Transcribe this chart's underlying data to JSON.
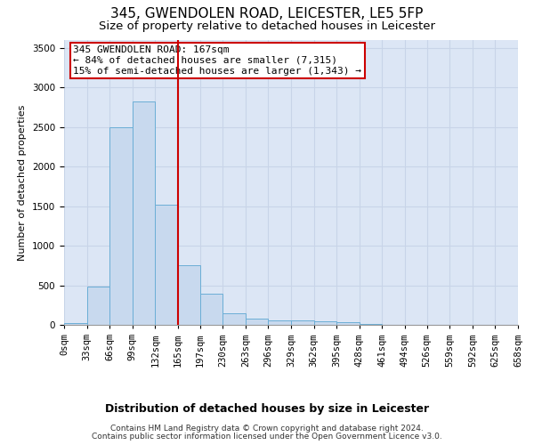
{
  "title1": "345, GWENDOLEN ROAD, LEICESTER, LE5 5FP",
  "title2": "Size of property relative to detached houses in Leicester",
  "xlabel": "Distribution of detached houses by size in Leicester",
  "ylabel": "Number of detached properties",
  "bin_edges": [
    0,
    33,
    66,
    99,
    132,
    165,
    197,
    230,
    263,
    296,
    329,
    362,
    395,
    428,
    461,
    494,
    526,
    559,
    592,
    625,
    658
  ],
  "bin_counts": [
    20,
    480,
    2500,
    2820,
    1520,
    750,
    390,
    150,
    80,
    60,
    55,
    50,
    30,
    15,
    0,
    0,
    0,
    0,
    0,
    0
  ],
  "bar_color": "#c8d9ee",
  "bar_edge_color": "#6baed6",
  "vline_x": 165,
  "vline_color": "#cc0000",
  "annotation_line1": "345 GWENDOLEN ROAD: 167sqm",
  "annotation_line2": "← 84% of detached houses are smaller (7,315)",
  "annotation_line3": "15% of semi-detached houses are larger (1,343) →",
  "annotation_box_color": "#cc0000",
  "ylim": [
    0,
    3600
  ],
  "yticks": [
    0,
    500,
    1000,
    1500,
    2000,
    2500,
    3000,
    3500
  ],
  "grid_color": "#c8d4e8",
  "bg_color": "#dce6f5",
  "footer1": "Contains HM Land Registry data © Crown copyright and database right 2024.",
  "footer2": "Contains public sector information licensed under the Open Government Licence v3.0.",
  "title1_fontsize": 11,
  "title2_fontsize": 9.5,
  "xlabel_fontsize": 9,
  "ylabel_fontsize": 8,
  "tick_fontsize": 7.5,
  "footer_fontsize": 6.5,
  "annotation_fontsize": 8
}
